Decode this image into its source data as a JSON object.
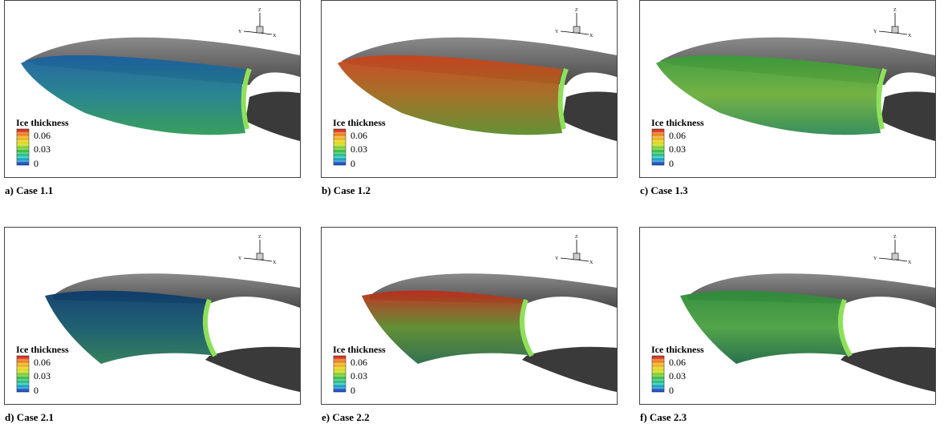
{
  "panels": [
    {
      "caption": "a) Case 1.1",
      "legend": {
        "title": "Ice thickness",
        "labels": [
          "0.06",
          "0.03",
          "0"
        ]
      },
      "axes": {
        "z": "Z",
        "y": "Y",
        "x": "X"
      }
    },
    {
      "caption": "b) Case 1.2",
      "legend": {
        "title": "Ice thickness",
        "labels": [
          "0.06",
          "0.03",
          "0"
        ]
      },
      "axes": {
        "z": "Z",
        "y": "Y",
        "x": "X"
      }
    },
    {
      "caption": "c) Case 1.3",
      "legend": {
        "title": "Ice thickness",
        "labels": [
          "0.06",
          "0.03",
          "0"
        ]
      },
      "axes": {
        "z": "Z",
        "y": "Y",
        "x": "X"
      }
    },
    {
      "caption": "d) Case 2.1",
      "legend": {
        "title": "Ice thickness",
        "labels": [
          "0.06",
          "0.03",
          "0"
        ]
      },
      "axes": {
        "z": "Z",
        "y": "Y",
        "x": "X"
      }
    },
    {
      "caption": "e) Case 2.2",
      "legend": {
        "title": "Ice thickness",
        "labels": [
          "0.06",
          "0.03",
          "0"
        ]
      },
      "axes": {
        "z": "Z",
        "y": "Y",
        "x": "X"
      }
    },
    {
      "caption": "f) Case 2.3",
      "legend": {
        "title": "Ice thickness",
        "labels": [
          "0.06",
          "0.03",
          "0"
        ]
      },
      "axes": {
        "z": "Z",
        "y": "Y",
        "x": "X"
      }
    }
  ]
}
